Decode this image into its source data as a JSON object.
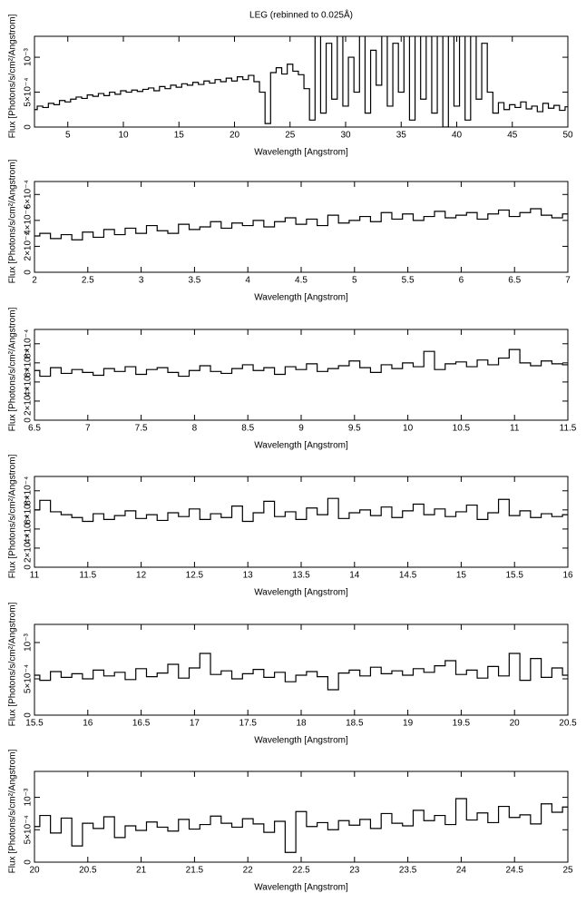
{
  "chart_data": [
    {
      "type": "line",
      "drawstyle": "steps-mid",
      "title": "LEG (rebinned to 0.025Å)",
      "x_label": "Wavelength [Angstrom]",
      "y_label": "Flux [Photons/s/cm²/Angstrom]",
      "color": "#000000",
      "xlim": [
        2,
        50
      ],
      "xticks": [
        5,
        10,
        15,
        20,
        25,
        30,
        35,
        40,
        45,
        50
      ],
      "ylim": [
        0,
        0.0013
      ],
      "yticks": [
        0,
        {
          "value": 0.0005,
          "label": "5×10⁻⁴"
        },
        {
          "value": 0.001,
          "label": "10⁻³"
        }
      ],
      "x": [
        2,
        2.5,
        3,
        3.5,
        4,
        4.5,
        5,
        5.5,
        6,
        6.5,
        7,
        7.5,
        8,
        8.5,
        9,
        9.5,
        10,
        10.5,
        11,
        11.5,
        12,
        12.5,
        13,
        13.5,
        14,
        14.5,
        15,
        15.5,
        16,
        16.5,
        17,
        17.5,
        18,
        18.5,
        19,
        19.5,
        20,
        20.5,
        21,
        21.5,
        22,
        22.5,
        23,
        23.5,
        24,
        24.5,
        25,
        25.5,
        26,
        26.5,
        27,
        27.5,
        28,
        28.5,
        29,
        29.5,
        30,
        30.5,
        31,
        31.5,
        32,
        32.5,
        33,
        33.5,
        34,
        34.5,
        35,
        35.5,
        36,
        36.5,
        37,
        37.5,
        38,
        38.5,
        39,
        39.5,
        40,
        40.5,
        41,
        41.5,
        42,
        42.5,
        43,
        43.5,
        44,
        44.5,
        45,
        45.5,
        46,
        46.5,
        47,
        47.5,
        48,
        48.5,
        49,
        49.5,
        50
      ],
      "values": [
        0.00025,
        0.0003,
        0.00028,
        0.00034,
        0.00032,
        0.00038,
        0.00036,
        0.0004,
        0.00043,
        0.00041,
        0.00046,
        0.00044,
        0.00048,
        0.00045,
        0.0005,
        0.00047,
        0.00052,
        0.0005,
        0.00053,
        0.00051,
        0.00054,
        0.00056,
        0.00052,
        0.00058,
        0.00055,
        0.0006,
        0.00057,
        0.00062,
        0.0006,
        0.00064,
        0.00061,
        0.00066,
        0.00063,
        0.00068,
        0.00065,
        0.0007,
        0.00066,
        0.00072,
        0.00068,
        0.00074,
        0.00065,
        0.0005,
        5e-05,
        0.00078,
        0.00085,
        0.00076,
        0.0009,
        0.0008,
        0.00075,
        0.00055,
        0.0001,
        0.0014,
        0.0002,
        0.0012,
        0.0004,
        0.0014,
        0.0003,
        0.001,
        0.0005,
        0.0014,
        0.0002,
        0.0011,
        0.0006,
        0.0014,
        0.0003,
        0.0012,
        0.0005,
        0.0014,
        0.0001,
        0.0014,
        0.0004,
        0.0014,
        0.0002,
        0.0014,
        0,
        0.0014,
        0.0003,
        0.0014,
        0.0001,
        0.0014,
        0.0004,
        0.0012,
        0.0005,
        0.0002,
        0.00035,
        0.00025,
        0.00032,
        0.00028,
        0.00036,
        0.00026,
        0.0003,
        0.00022,
        0.00034,
        0.00027,
        0.00031,
        0.00024,
        0.00029
      ]
    },
    {
      "type": "line",
      "drawstyle": "steps-mid",
      "x_label": "Wavelength [Angstrom]",
      "y_label": "Flux [Photons/s/cm²/Angstrom]",
      "color": "#000000",
      "xlim": [
        2,
        7
      ],
      "xticks": [
        2,
        2.5,
        3,
        3.5,
        4,
        4.5,
        5,
        5.5,
        6,
        6.5,
        7
      ],
      "ylim": [
        0,
        0.0007
      ],
      "yticks": [
        0,
        {
          "value": 0.0002,
          "label": "2×10⁻⁴"
        },
        {
          "value": 0.0004,
          "label": "4×10⁻⁴"
        },
        {
          "value": 0.0006,
          "label": "6×10⁻⁴"
        }
      ],
      "x": [
        2,
        2.1,
        2.2,
        2.3,
        2.4,
        2.5,
        2.6,
        2.7,
        2.8,
        2.9,
        3,
        3.1,
        3.2,
        3.3,
        3.4,
        3.5,
        3.6,
        3.7,
        3.8,
        3.9,
        4,
        4.1,
        4.2,
        4.3,
        4.4,
        4.5,
        4.6,
        4.7,
        4.8,
        4.9,
        5,
        5.1,
        5.2,
        5.3,
        5.4,
        5.5,
        5.6,
        5.7,
        5.8,
        5.9,
        6,
        6.1,
        6.2,
        6.3,
        6.4,
        6.5,
        6.6,
        6.7,
        6.8,
        6.9,
        7
      ],
      "values": [
        0.00028,
        0.0003,
        0.00026,
        0.00029,
        0.00025,
        0.00031,
        0.00027,
        0.00033,
        0.00029,
        0.00034,
        0.0003,
        0.00036,
        0.00032,
        0.0003,
        0.00037,
        0.00033,
        0.00035,
        0.00039,
        0.00034,
        0.00038,
        0.00036,
        0.0004,
        0.00035,
        0.00039,
        0.00042,
        0.00037,
        0.00041,
        0.00036,
        0.00044,
        0.00038,
        0.0004,
        0.00043,
        0.00039,
        0.00046,
        0.00041,
        0.00045,
        0.0004,
        0.00043,
        0.00047,
        0.00042,
        0.00044,
        0.00046,
        0.00041,
        0.00045,
        0.00048,
        0.00043,
        0.00046,
        0.00049,
        0.00044,
        0.00042,
        0.00045
      ]
    },
    {
      "type": "line",
      "drawstyle": "steps-mid",
      "x_label": "Wavelength [Angstrom]",
      "y_label": "Flux [Photons/s/cm²/Angstrom]",
      "color": "#000000",
      "xlim": [
        6.5,
        11.5
      ],
      "xticks": [
        6.5,
        7,
        7.5,
        8,
        8.5,
        9,
        9.5,
        10,
        10.5,
        11,
        11.5
      ],
      "ylim": [
        0,
        0.00095
      ],
      "yticks": [
        0,
        {
          "value": 0.0002,
          "label": "2×10⁻⁴"
        },
        {
          "value": 0.0004,
          "label": "4×10⁻⁴"
        },
        {
          "value": 0.0006,
          "label": "6×10⁻⁴"
        },
        {
          "value": 0.0008,
          "label": "8×10⁻⁴"
        }
      ],
      "x": [
        6.5,
        6.6,
        6.7,
        6.8,
        6.9,
        7,
        7.1,
        7.2,
        7.3,
        7.4,
        7.5,
        7.6,
        7.7,
        7.8,
        7.9,
        8,
        8.1,
        8.2,
        8.3,
        8.4,
        8.5,
        8.6,
        8.7,
        8.8,
        8.9,
        9,
        9.1,
        9.2,
        9.3,
        9.4,
        9.5,
        9.6,
        9.7,
        9.8,
        9.9,
        10,
        10.1,
        10.2,
        10.3,
        10.4,
        10.5,
        10.6,
        10.7,
        10.8,
        10.9,
        11,
        11.1,
        11.2,
        11.3,
        11.4,
        11.5
      ],
      "values": [
        0.00052,
        0.00046,
        0.00055,
        0.00049,
        0.00053,
        0.0005,
        0.00047,
        0.00054,
        0.00051,
        0.00056,
        0.00048,
        0.00053,
        0.00055,
        0.0005,
        0.00046,
        0.00052,
        0.00057,
        0.00051,
        0.00049,
        0.00054,
        0.00058,
        0.00052,
        0.00055,
        0.00048,
        0.00056,
        0.00053,
        0.00059,
        0.00051,
        0.00054,
        0.00057,
        0.00062,
        0.00055,
        0.0005,
        0.00058,
        0.00054,
        0.0006,
        0.00056,
        0.00072,
        0.00053,
        0.00059,
        0.00061,
        0.00056,
        0.00063,
        0.00058,
        0.00065,
        0.00074,
        0.0006,
        0.00057,
        0.00062,
        0.00059,
        0.00058
      ]
    },
    {
      "type": "line",
      "drawstyle": "steps-mid",
      "x_label": "Wavelength [Angstrom]",
      "y_label": "Flux [Photons/s/cm²/Angstrom]",
      "color": "#000000",
      "xlim": [
        11,
        16
      ],
      "xticks": [
        11,
        11.5,
        12,
        12.5,
        13,
        13.5,
        14,
        14.5,
        15,
        15.5,
        16
      ],
      "ylim": [
        0,
        0.00095
      ],
      "yticks": [
        0,
        {
          "value": 0.0002,
          "label": "2×10⁻⁴"
        },
        {
          "value": 0.0004,
          "label": "4×10⁻⁴"
        },
        {
          "value": 0.0006,
          "label": "6×10⁻⁴"
        },
        {
          "value": 0.0008,
          "label": "8×10⁻⁴"
        }
      ],
      "x": [
        11,
        11.1,
        11.2,
        11.3,
        11.4,
        11.5,
        11.6,
        11.7,
        11.8,
        11.9,
        12,
        12.1,
        12.2,
        12.3,
        12.4,
        12.5,
        12.6,
        12.7,
        12.8,
        12.9,
        13,
        13.1,
        13.2,
        13.3,
        13.4,
        13.5,
        13.6,
        13.7,
        13.8,
        13.9,
        14,
        14.1,
        14.2,
        14.3,
        14.4,
        14.5,
        14.6,
        14.7,
        14.8,
        14.9,
        15,
        15.1,
        15.2,
        15.3,
        15.4,
        15.5,
        15.6,
        15.7,
        15.8,
        15.9,
        16
      ],
      "values": [
        0.0006,
        0.0007,
        0.00058,
        0.00055,
        0.00052,
        0.00048,
        0.00056,
        0.0005,
        0.00054,
        0.00059,
        0.00051,
        0.00055,
        0.00049,
        0.00057,
        0.00053,
        0.00061,
        0.0005,
        0.00056,
        0.00052,
        0.00064,
        0.00048,
        0.00057,
        0.00069,
        0.00053,
        0.00058,
        0.0005,
        0.00062,
        0.00055,
        0.00072,
        0.00051,
        0.00057,
        0.0006,
        0.00054,
        0.00063,
        0.00052,
        0.00059,
        0.00066,
        0.00055,
        0.00061,
        0.00053,
        0.00058,
        0.00065,
        0.0005,
        0.00057,
        0.00071,
        0.00054,
        0.00059,
        0.00052,
        0.00056,
        0.00053,
        0.00055
      ]
    },
    {
      "type": "line",
      "drawstyle": "steps-mid",
      "x_label": "Wavelength [Angstrom]",
      "y_label": "Flux [Photons/s/cm²/Angstrom]",
      "color": "#000000",
      "xlim": [
        15.5,
        20.5
      ],
      "xticks": [
        15.5,
        16,
        16.5,
        17,
        17.5,
        18,
        18.5,
        19,
        19.5,
        20,
        20.5
      ],
      "ylim": [
        0,
        0.00125
      ],
      "yticks": [
        0,
        {
          "value": 0.0005,
          "label": "5×10⁻⁴"
        },
        {
          "value": 0.001,
          "label": "10⁻³"
        }
      ],
      "x": [
        15.5,
        15.6,
        15.7,
        15.8,
        15.9,
        16,
        16.1,
        16.2,
        16.3,
        16.4,
        16.5,
        16.6,
        16.7,
        16.8,
        16.9,
        17,
        17.1,
        17.2,
        17.3,
        17.4,
        17.5,
        17.6,
        17.7,
        17.8,
        17.9,
        18,
        18.1,
        18.2,
        18.3,
        18.4,
        18.5,
        18.6,
        18.7,
        18.8,
        18.9,
        19,
        19.1,
        19.2,
        19.3,
        19.4,
        19.5,
        19.6,
        19.7,
        19.8,
        19.9,
        20,
        20.1,
        20.2,
        20.3,
        20.4,
        20.5
      ],
      "values": [
        0.00055,
        0.00048,
        0.0006,
        0.00052,
        0.00057,
        0.0005,
        0.00062,
        0.00054,
        0.00059,
        0.00049,
        0.00064,
        0.00053,
        0.00058,
        0.0007,
        0.00051,
        0.00065,
        0.00085,
        0.00056,
        0.00061,
        0.0005,
        0.00057,
        0.00063,
        0.00052,
        0.00059,
        0.00046,
        0.00055,
        0.0006,
        0.00053,
        0.00035,
        0.00058,
        0.00062,
        0.00054,
        0.00066,
        0.00057,
        0.00061,
        0.00055,
        0.00064,
        0.00059,
        0.00068,
        0.00075,
        0.00056,
        0.00062,
        0.00051,
        0.00067,
        0.00054,
        0.00085,
        0.00048,
        0.00078,
        0.00052,
        0.00065,
        0.00055
      ]
    },
    {
      "type": "line",
      "drawstyle": "steps-mid",
      "x_label": "Wavelength [Angstrom]",
      "y_label": "Flux [Photons/s/cm²/Angstrom]",
      "color": "#000000",
      "xlim": [
        20,
        25
      ],
      "xticks": [
        20,
        20.5,
        21,
        21.5,
        22,
        22.5,
        23,
        23.5,
        24,
        24.5,
        25
      ],
      "ylim": [
        0,
        0.0014
      ],
      "yticks": [
        0,
        {
          "value": 0.0005,
          "label": "5×10⁻⁴"
        },
        {
          "value": 0.001,
          "label": "10⁻³"
        }
      ],
      "x": [
        20,
        20.1,
        20.2,
        20.3,
        20.4,
        20.5,
        20.6,
        20.7,
        20.8,
        20.9,
        21,
        21.1,
        21.2,
        21.3,
        21.4,
        21.5,
        21.6,
        21.7,
        21.8,
        21.9,
        22,
        22.1,
        22.2,
        22.3,
        22.4,
        22.5,
        22.6,
        22.7,
        22.8,
        22.9,
        23,
        23.1,
        23.2,
        23.3,
        23.4,
        23.5,
        23.6,
        23.7,
        23.8,
        23.9,
        24,
        24.1,
        24.2,
        24.3,
        24.4,
        24.5,
        24.6,
        24.7,
        24.8,
        24.9,
        25
      ],
      "values": [
        0.00055,
        0.00072,
        0.00045,
        0.00068,
        0.00025,
        0.0006,
        0.00052,
        0.0007,
        0.00038,
        0.00056,
        0.00049,
        0.00062,
        0.00054,
        0.00048,
        0.00066,
        0.00051,
        0.00058,
        0.00071,
        0.0006,
        0.00054,
        0.00067,
        0.00059,
        0.00046,
        0.00063,
        0.00015,
        0.00078,
        0.00055,
        0.00061,
        0.0005,
        0.00064,
        0.00057,
        0.00066,
        0.00052,
        0.00075,
        0.0006,
        0.00056,
        0.0008,
        0.00064,
        0.00072,
        0.00058,
        0.00098,
        0.00065,
        0.00076,
        0.00061,
        0.00086,
        0.00069,
        0.00073,
        0.00059,
        0.0009,
        0.00077,
        0.00085
      ]
    }
  ]
}
